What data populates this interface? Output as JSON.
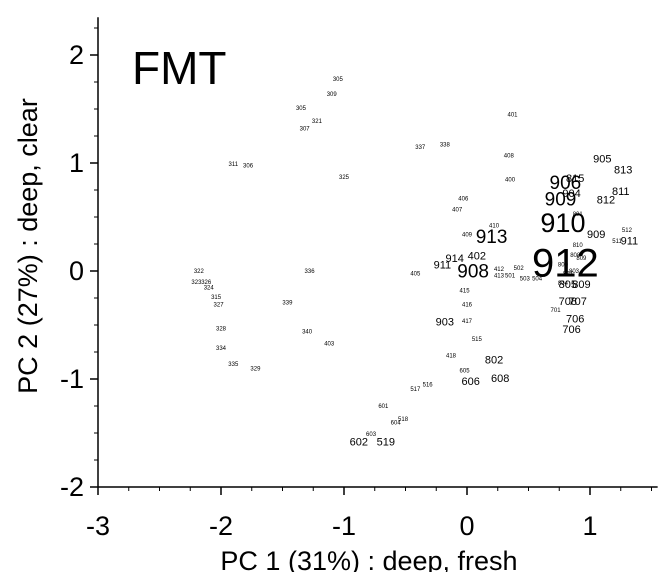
{
  "chart_data": {
    "type": "scatter",
    "title": "FMT",
    "xlabel": "PC 1 (31%) : deep, fresh",
    "ylabel": "PC 2 (27%) : deep, clear",
    "xlim": [
      -3,
      1.55
    ],
    "ylim": [
      -2,
      2.35
    ],
    "xticks": [
      -3,
      -2,
      -1,
      0,
      1
    ],
    "yticks": [
      -2,
      -1,
      0,
      1,
      2
    ],
    "xtick_labels": [
      "-3",
      "-2",
      "-1",
      "0",
      "1"
    ],
    "ytick_labels": [
      "-2",
      "-1",
      "0",
      "1",
      "2"
    ],
    "grid": false,
    "legend": "none",
    "point_label_note": "each point is drawn as its sample number; larger numbers mark heavier weight",
    "points": [
      {
        "label": "305",
        "x": -1.05,
        "y": 1.78,
        "weight": 1
      },
      {
        "label": "309",
        "x": -1.1,
        "y": 1.64,
        "weight": 1
      },
      {
        "label": "305",
        "x": -1.35,
        "y": 1.51,
        "weight": 1
      },
      {
        "label": "321",
        "x": -1.22,
        "y": 1.39,
        "weight": 1
      },
      {
        "label": "307",
        "x": -1.32,
        "y": 1.32,
        "weight": 1
      },
      {
        "label": "311",
        "x": -1.9,
        "y": 0.99,
        "weight": 1
      },
      {
        "label": "306",
        "x": -1.78,
        "y": 0.98,
        "weight": 1
      },
      {
        "label": "325",
        "x": -1.0,
        "y": 0.87,
        "weight": 1
      },
      {
        "label": "337",
        "x": -0.38,
        "y": 1.15,
        "weight": 1
      },
      {
        "label": "338",
        "x": -0.18,
        "y": 1.17,
        "weight": 1
      },
      {
        "label": "401",
        "x": 0.37,
        "y": 1.45,
        "weight": 1
      },
      {
        "label": "408",
        "x": 0.34,
        "y": 1.07,
        "weight": 1
      },
      {
        "label": "400",
        "x": 0.35,
        "y": 0.85,
        "weight": 1
      },
      {
        "label": "406",
        "x": -0.03,
        "y": 0.67,
        "weight": 1
      },
      {
        "label": "407",
        "x": -0.08,
        "y": 0.57,
        "weight": 1
      },
      {
        "label": "410",
        "x": 0.22,
        "y": 0.42,
        "weight": 1
      },
      {
        "label": "409",
        "x": 0.0,
        "y": 0.34,
        "weight": 1
      },
      {
        "label": "913",
        "x": 0.2,
        "y": 0.32,
        "weight": 3
      },
      {
        "label": "402",
        "x": 0.08,
        "y": 0.14,
        "weight": 2
      },
      {
        "label": "914",
        "x": -0.1,
        "y": 0.12,
        "weight": 2
      },
      {
        "label": "911",
        "x": -0.2,
        "y": 0.06,
        "weight": 2
      },
      {
        "label": "908",
        "x": 0.05,
        "y": 0.0,
        "weight": 3
      },
      {
        "label": "412",
        "x": 0.26,
        "y": 0.02,
        "weight": 1
      },
      {
        "label": "502",
        "x": 0.42,
        "y": 0.03,
        "weight": 1
      },
      {
        "label": "413",
        "x": 0.26,
        "y": -0.04,
        "weight": 1
      },
      {
        "label": "501",
        "x": 0.35,
        "y": -0.04,
        "weight": 1
      },
      {
        "label": "503",
        "x": 0.47,
        "y": -0.07,
        "weight": 1
      },
      {
        "label": "504",
        "x": 0.57,
        "y": -0.07,
        "weight": 1
      },
      {
        "label": "405",
        "x": -0.42,
        "y": -0.02,
        "weight": 1
      },
      {
        "label": "415",
        "x": -0.02,
        "y": -0.18,
        "weight": 1
      },
      {
        "label": "416",
        "x": 0.0,
        "y": -0.31,
        "weight": 1
      },
      {
        "label": "903",
        "x": -0.18,
        "y": -0.47,
        "weight": 2
      },
      {
        "label": "417",
        "x": 0.0,
        "y": -0.46,
        "weight": 1
      },
      {
        "label": "515",
        "x": 0.08,
        "y": -0.63,
        "weight": 1
      },
      {
        "label": "418",
        "x": -0.13,
        "y": -0.78,
        "weight": 1
      },
      {
        "label": "605",
        "x": -0.02,
        "y": -0.92,
        "weight": 1
      },
      {
        "label": "802",
        "x": 0.22,
        "y": -0.82,
        "weight": 2
      },
      {
        "label": "606",
        "x": 0.03,
        "y": -1.02,
        "weight": 2
      },
      {
        "label": "608",
        "x": 0.27,
        "y": -0.99,
        "weight": 2
      },
      {
        "label": "516",
        "x": -0.32,
        "y": -1.05,
        "weight": 1
      },
      {
        "label": "517",
        "x": -0.42,
        "y": -1.09,
        "weight": 1
      },
      {
        "label": "601",
        "x": -0.68,
        "y": -1.25,
        "weight": 1
      },
      {
        "label": "604",
        "x": -0.58,
        "y": -1.4,
        "weight": 1
      },
      {
        "label": "518",
        "x": -0.52,
        "y": -1.37,
        "weight": 1
      },
      {
        "label": "603",
        "x": -0.78,
        "y": -1.51,
        "weight": 1
      },
      {
        "label": "602",
        "x": -0.88,
        "y": -1.58,
        "weight": 2
      },
      {
        "label": "519",
        "x": -0.66,
        "y": -1.58,
        "weight": 2
      },
      {
        "label": "322",
        "x": -2.18,
        "y": 0.0,
        "weight": 1
      },
      {
        "label": "323",
        "x": -2.2,
        "y": -0.1,
        "weight": 1
      },
      {
        "label": "326",
        "x": -2.12,
        "y": -0.1,
        "weight": 1
      },
      {
        "label": "324",
        "x": -2.1,
        "y": -0.15,
        "weight": 1
      },
      {
        "label": "315",
        "x": -2.04,
        "y": -0.24,
        "weight": 1
      },
      {
        "label": "327",
        "x": -2.02,
        "y": -0.31,
        "weight": 1
      },
      {
        "label": "328",
        "x": -2.0,
        "y": -0.53,
        "weight": 1
      },
      {
        "label": "334",
        "x": -2.0,
        "y": -0.71,
        "weight": 1
      },
      {
        "label": "335",
        "x": -1.9,
        "y": -0.86,
        "weight": 1
      },
      {
        "label": "329",
        "x": -1.72,
        "y": -0.9,
        "weight": 1
      },
      {
        "label": "336",
        "x": -1.28,
        "y": 0.0,
        "weight": 1
      },
      {
        "label": "339",
        "x": -1.46,
        "y": -0.29,
        "weight": 1
      },
      {
        "label": "340",
        "x": -1.3,
        "y": -0.56,
        "weight": 1
      },
      {
        "label": "403",
        "x": -1.12,
        "y": -0.67,
        "weight": 1
      },
      {
        "label": "905",
        "x": 1.1,
        "y": 1.04,
        "weight": 2
      },
      {
        "label": "813",
        "x": 1.27,
        "y": 0.94,
        "weight": 2
      },
      {
        "label": "815",
        "x": 0.88,
        "y": 0.86,
        "weight": 2
      },
      {
        "label": "906",
        "x": 0.8,
        "y": 0.82,
        "weight": 3
      },
      {
        "label": "904",
        "x": 0.85,
        "y": 0.72,
        "weight": 2
      },
      {
        "label": "909",
        "x": 0.76,
        "y": 0.67,
        "weight": 3
      },
      {
        "label": "811",
        "x": 1.25,
        "y": 0.74,
        "weight": 2
      },
      {
        "label": "812",
        "x": 1.13,
        "y": 0.66,
        "weight": 2
      },
      {
        "label": "801",
        "x": 0.9,
        "y": 0.53,
        "weight": 1
      },
      {
        "label": "910",
        "x": 0.78,
        "y": 0.45,
        "weight": 4
      },
      {
        "label": "512",
        "x": 1.3,
        "y": 0.38,
        "weight": 1
      },
      {
        "label": "909",
        "x": 1.05,
        "y": 0.34,
        "weight": 2
      },
      {
        "label": "511",
        "x": 1.22,
        "y": 0.28,
        "weight": 1
      },
      {
        "label": "911",
        "x": 1.32,
        "y": 0.28,
        "weight": 2
      },
      {
        "label": "912",
        "x": 0.8,
        "y": 0.08,
        "weight": 5
      },
      {
        "label": "810",
        "x": 0.9,
        "y": 0.24,
        "weight": 1
      },
      {
        "label": "808",
        "x": 0.88,
        "y": 0.15,
        "weight": 1
      },
      {
        "label": "809",
        "x": 0.93,
        "y": 0.12,
        "weight": 1
      },
      {
        "label": "800",
        "x": 0.78,
        "y": 0.06,
        "weight": 1
      },
      {
        "label": "807",
        "x": 0.82,
        "y": -0.02,
        "weight": 1
      },
      {
        "label": "803",
        "x": 0.87,
        "y": 0.0,
        "weight": 1
      },
      {
        "label": "804",
        "x": 0.78,
        "y": -0.11,
        "weight": 1
      },
      {
        "label": "805",
        "x": 0.82,
        "y": -0.12,
        "weight": 2
      },
      {
        "label": "809",
        "x": 0.93,
        "y": -0.12,
        "weight": 2
      },
      {
        "label": "708",
        "x": 0.82,
        "y": -0.28,
        "weight": 2
      },
      {
        "label": "707",
        "x": 0.9,
        "y": -0.28,
        "weight": 2
      },
      {
        "label": "701",
        "x": 0.72,
        "y": -0.36,
        "weight": 1
      },
      {
        "label": "706",
        "x": 0.88,
        "y": -0.44,
        "weight": 2
      },
      {
        "label": "706",
        "x": 0.85,
        "y": -0.54,
        "weight": 2
      }
    ]
  }
}
